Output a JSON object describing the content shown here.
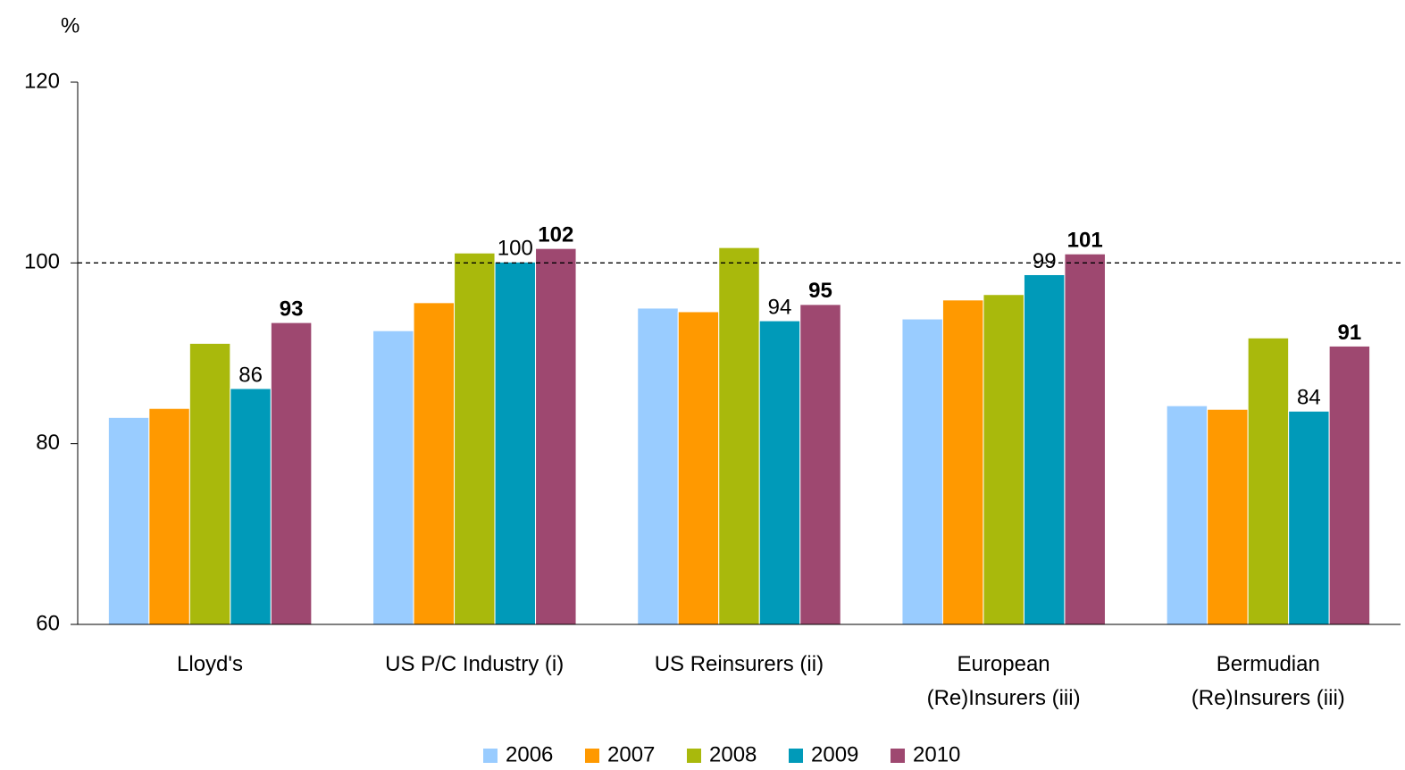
{
  "chart_data": {
    "type": "bar",
    "title": "%",
    "categories": [
      "Lloyd's",
      "US P/C Industry (i)",
      "US Reinsurers (ii)",
      "European\n(Re)Insurers (iii)",
      "Bermudian\n(Re)Insurers (iii)"
    ],
    "series": [
      {
        "name": "2006",
        "color": "#99ccff",
        "values": [
          82.9,
          92.5,
          95.0,
          93.8,
          84.2
        ]
      },
      {
        "name": "2007",
        "color": "#ff9900",
        "values": [
          83.9,
          95.6,
          94.6,
          95.9,
          83.8
        ]
      },
      {
        "name": "2008",
        "color": "#a9b90c",
        "values": [
          91.1,
          101.1,
          101.7,
          96.5,
          91.7
        ]
      },
      {
        "name": "2009",
        "color": "#009ab9",
        "values": [
          86.1,
          100.1,
          93.6,
          98.7,
          83.6
        ],
        "value_labels": [
          "86",
          "100",
          "94",
          "99",
          "84"
        ]
      },
      {
        "name": "2010",
        "color": "#9e4870",
        "values": [
          93.4,
          101.6,
          95.4,
          101.0,
          90.8
        ],
        "value_labels": [
          "93",
          "102",
          "95",
          "101",
          "91"
        ],
        "bold_labels": true
      }
    ],
    "ylim": [
      60,
      120
    ],
    "yticks": [
      60,
      80,
      100,
      120
    ],
    "reference_line": 100,
    "legend": "bottom"
  }
}
